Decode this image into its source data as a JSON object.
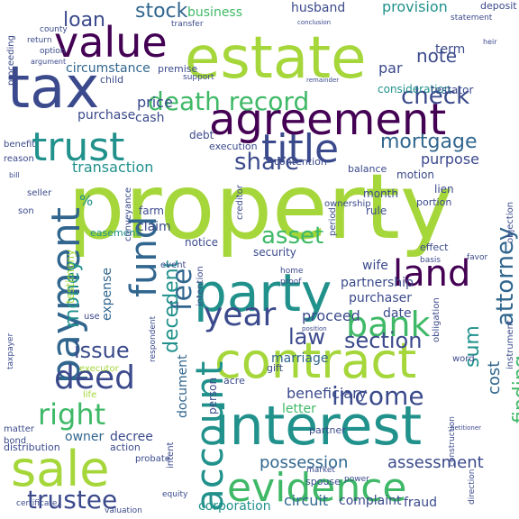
{
  "palette": {
    "lime": "#a5d63a",
    "green": "#3fb967",
    "teal": "#21918c",
    "blue": "#31668e",
    "indigo": "#3b4a8c",
    "purple": "#440154"
  },
  "words": [
    {
      "text": "property",
      "color": "lime"
    },
    {
      "text": "estate",
      "color": "lime"
    },
    {
      "text": "interest",
      "color": "teal"
    },
    {
      "text": "agreement",
      "color": "purple"
    },
    {
      "text": "tax",
      "color": "indigo"
    },
    {
      "text": "value",
      "color": "purple"
    },
    {
      "text": "party",
      "color": "teal"
    },
    {
      "text": "contract",
      "color": "lime"
    },
    {
      "text": "sale",
      "color": "lime"
    },
    {
      "text": "evidence",
      "color": "green"
    },
    {
      "text": "payment",
      "color": "blue"
    },
    {
      "text": "account",
      "color": "teal"
    },
    {
      "text": "trust",
      "color": "teal"
    },
    {
      "text": "title",
      "color": "indigo"
    },
    {
      "text": "land",
      "color": "purple"
    },
    {
      "text": "bank",
      "color": "green"
    },
    {
      "text": "fund",
      "color": "blue"
    },
    {
      "text": "year",
      "color": "indigo"
    },
    {
      "text": "deed",
      "color": "indigo"
    },
    {
      "text": "death record",
      "color": "green"
    },
    {
      "text": "income",
      "color": "indigo"
    },
    {
      "text": "right",
      "color": "green"
    },
    {
      "text": "trustee",
      "color": "indigo"
    },
    {
      "text": "check",
      "color": "indigo"
    },
    {
      "text": "mortgage",
      "color": "blue"
    },
    {
      "text": "share",
      "color": "indigo"
    },
    {
      "text": "asset",
      "color": "green"
    },
    {
      "text": "fee",
      "color": "blue"
    },
    {
      "text": "attorney",
      "color": "blue"
    },
    {
      "text": "section",
      "color": "indigo"
    },
    {
      "text": "issue",
      "color": "indigo"
    },
    {
      "text": "law",
      "color": "indigo"
    },
    {
      "text": "money",
      "color": "teal"
    },
    {
      "text": "decedent",
      "color": "teal"
    },
    {
      "text": "finding",
      "color": "green"
    },
    {
      "text": "sum",
      "color": "teal"
    },
    {
      "text": "loan",
      "color": "indigo"
    },
    {
      "text": "stock",
      "color": "blue"
    },
    {
      "text": "note",
      "color": "indigo"
    },
    {
      "text": "assessment",
      "color": "indigo"
    },
    {
      "text": "possession",
      "color": "blue"
    },
    {
      "text": "circuit",
      "color": "blue"
    },
    {
      "text": "complaint",
      "color": "indigo"
    },
    {
      "text": "fraud",
      "color": "indigo"
    },
    {
      "text": "corporation",
      "color": "teal"
    },
    {
      "text": "beneficiary",
      "color": "indigo"
    },
    {
      "text": "letter",
      "color": "green"
    },
    {
      "text": "partnership",
      "color": "indigo"
    },
    {
      "text": "purchaser",
      "color": "indigo"
    },
    {
      "text": "proceed",
      "color": "indigo"
    },
    {
      "text": "purpose",
      "color": "indigo"
    },
    {
      "text": "transaction",
      "color": "teal"
    },
    {
      "text": "purchase",
      "color": "indigo"
    },
    {
      "text": "price",
      "color": "indigo"
    },
    {
      "text": "cash",
      "color": "indigo"
    },
    {
      "text": "business",
      "color": "green"
    },
    {
      "text": "husband",
      "color": "indigo"
    },
    {
      "text": "provision",
      "color": "teal"
    },
    {
      "text": "circumstance",
      "color": "blue"
    },
    {
      "text": "consideration",
      "color": "teal"
    },
    {
      "text": "testator",
      "color": "indigo"
    },
    {
      "text": "term",
      "color": "indigo"
    },
    {
      "text": "par",
      "color": "indigo"
    },
    {
      "text": "cost",
      "color": "blue"
    },
    {
      "text": "owner",
      "color": "blue"
    },
    {
      "text": "decree",
      "color": "indigo"
    },
    {
      "text": "marriage",
      "color": "blue"
    },
    {
      "text": "wife",
      "color": "indigo"
    },
    {
      "text": "claim",
      "color": "indigo"
    },
    {
      "text": "date",
      "color": "indigo"
    },
    {
      "text": "expense",
      "color": "blue"
    },
    {
      "text": "document",
      "color": "blue"
    },
    {
      "text": "testimony",
      "color": "lime"
    },
    {
      "text": "debt",
      "color": "indigo"
    },
    {
      "text": "lien",
      "color": "indigo"
    },
    {
      "text": "motion",
      "color": "indigo"
    },
    {
      "text": "month",
      "color": "indigo"
    },
    {
      "text": "rule",
      "color": "indigo"
    },
    {
      "text": "farm",
      "color": "indigo"
    },
    {
      "text": "security",
      "color": "indigo"
    },
    {
      "text": "notice",
      "color": "indigo"
    },
    {
      "text": "easement",
      "color": "teal"
    },
    {
      "text": "action",
      "color": "indigo"
    },
    {
      "text": "distribution",
      "color": "indigo"
    },
    {
      "text": "gift",
      "color": "indigo"
    },
    {
      "text": "effect",
      "color": "indigo"
    },
    {
      "text": "portion",
      "color": "indigo"
    },
    {
      "text": "balance",
      "color": "indigo"
    },
    {
      "text": "contention",
      "color": "indigo"
    },
    {
      "text": "execution",
      "color": "indigo"
    },
    {
      "text": "acre",
      "color": "indigo"
    },
    {
      "text": "person",
      "color": "indigo"
    },
    {
      "text": "partner",
      "color": "indigo"
    },
    {
      "text": "executor",
      "color": "lime"
    },
    {
      "text": "spouse",
      "color": "indigo"
    },
    {
      "text": "deposit",
      "color": "indigo"
    },
    {
      "text": "child",
      "color": "indigo"
    },
    {
      "text": "premise",
      "color": "indigo"
    },
    {
      "text": "support",
      "color": "indigo"
    },
    {
      "text": "home",
      "color": "indigo"
    },
    {
      "text": "proof",
      "color": "indigo"
    },
    {
      "text": "basis",
      "color": "indigo"
    },
    {
      "text": "favor",
      "color": "indigo"
    },
    {
      "text": "obligation",
      "color": "indigo"
    },
    {
      "text": "instrument",
      "color": "indigo"
    },
    {
      "text": "ownership",
      "color": "indigo"
    },
    {
      "text": "objection",
      "color": "indigo"
    },
    {
      "text": "period",
      "color": "indigo"
    },
    {
      "text": "creditor",
      "color": "indigo"
    },
    {
      "text": "conveyance",
      "color": "indigo"
    },
    {
      "text": "event",
      "color": "indigo"
    },
    {
      "text": "intention",
      "color": "indigo"
    },
    {
      "text": "intent",
      "color": "indigo"
    },
    {
      "text": "probate",
      "color": "indigo"
    },
    {
      "text": "word",
      "color": "indigo"
    },
    {
      "text": "matter",
      "color": "indigo"
    },
    {
      "text": "bond",
      "color": "indigo"
    },
    {
      "text": "life",
      "color": "lime"
    },
    {
      "text": "use",
      "color": "indigo"
    },
    {
      "text": "reason",
      "color": "indigo"
    },
    {
      "text": "benefit",
      "color": "indigo"
    },
    {
      "text": "son",
      "color": "indigo"
    },
    {
      "text": "seller",
      "color": "indigo"
    },
    {
      "text": "bill",
      "color": "indigo"
    },
    {
      "text": "market",
      "color": "indigo"
    },
    {
      "text": "power",
      "color": "indigo"
    },
    {
      "text": "equity",
      "color": "indigo"
    },
    {
      "text": "certificate",
      "color": "indigo"
    },
    {
      "text": "valuation",
      "color": "indigo"
    },
    {
      "text": "direction",
      "color": "indigo"
    },
    {
      "text": "construction",
      "color": "indigo"
    },
    {
      "text": "proceeding",
      "color": "indigo"
    },
    {
      "text": "county",
      "color": "indigo"
    },
    {
      "text": "return",
      "color": "indigo"
    },
    {
      "text": "option",
      "color": "indigo"
    },
    {
      "text": "argument",
      "color": "indigo"
    },
    {
      "text": "transfer",
      "color": "indigo"
    },
    {
      "text": "conclusion",
      "color": "indigo"
    },
    {
      "text": "statement",
      "color": "indigo"
    },
    {
      "text": "heir",
      "color": "indigo"
    },
    {
      "text": "remainder",
      "color": "indigo"
    },
    {
      "text": "respondent",
      "color": "indigo"
    },
    {
      "text": "taxpayer",
      "color": "indigo"
    },
    {
      "text": "position",
      "color": "indigo"
    },
    {
      "text": "petitioner",
      "color": "indigo"
    },
    {
      "text": "%",
      "color": "teal"
    }
  ]
}
